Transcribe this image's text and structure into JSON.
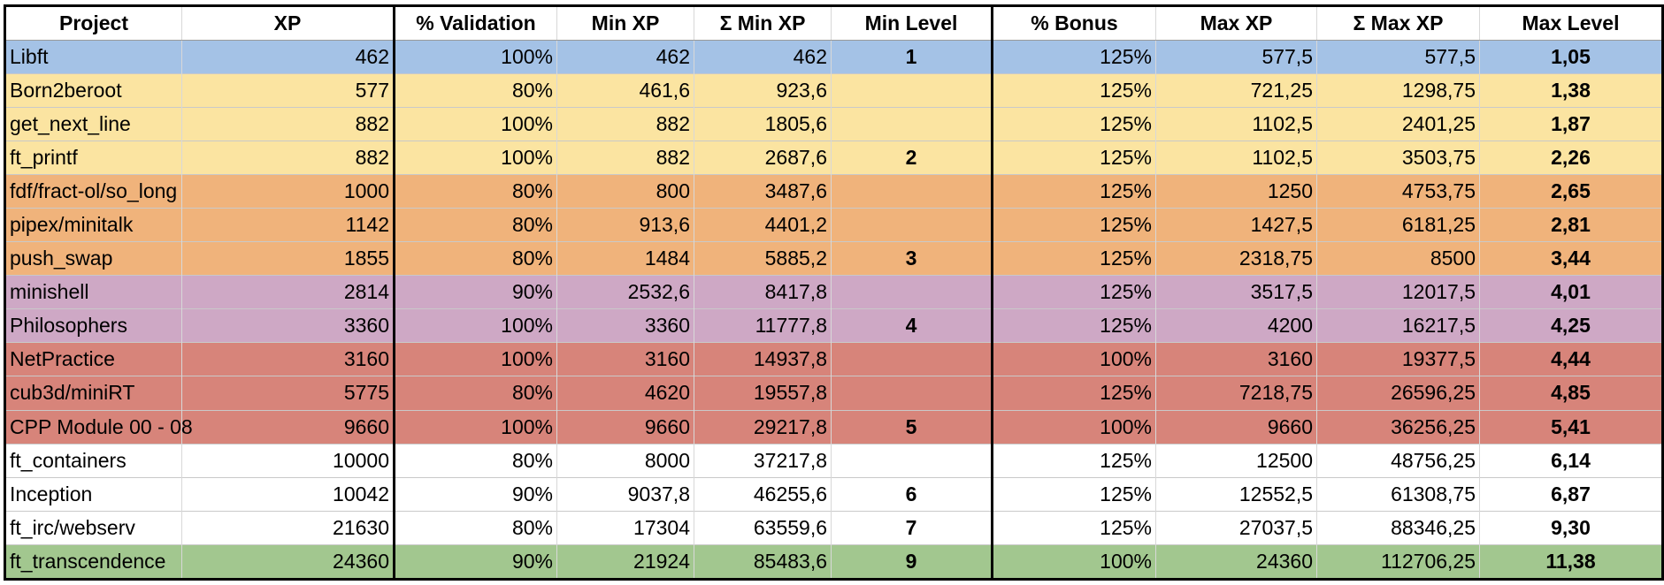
{
  "colors": {
    "blue": "#a4c2e6",
    "yellow": "#fbe4a1",
    "orange": "#f0b37b",
    "purple": "#cea8c5",
    "red": "#d7847a",
    "white": "#ffffff",
    "green": "#a2c78f"
  },
  "headers": [
    "Project",
    "XP",
    "% Validation",
    "Min XP",
    "Σ Min XP",
    "Min Level",
    "% Bonus",
    "Max XP",
    "Σ Max XP",
    "Max Level"
  ],
  "rows": [
    {
      "color": "blue",
      "cells": [
        "Libft",
        "462",
        "100%",
        "462",
        "462",
        "1",
        "125%",
        "577,5",
        "577,5",
        "1,05"
      ]
    },
    {
      "color": "yellow",
      "cells": [
        "Born2beroot",
        "577",
        "80%",
        "461,6",
        "923,6",
        "",
        "125%",
        "721,25",
        "1298,75",
        "1,38"
      ]
    },
    {
      "color": "yellow",
      "cells": [
        "get_next_line",
        "882",
        "100%",
        "882",
        "1805,6",
        "",
        "125%",
        "1102,5",
        "2401,25",
        "1,87"
      ]
    },
    {
      "color": "yellow",
      "cells": [
        "ft_printf",
        "882",
        "100%",
        "882",
        "2687,6",
        "2",
        "125%",
        "1102,5",
        "3503,75",
        "2,26"
      ]
    },
    {
      "color": "orange",
      "cells": [
        "fdf/fract-ol/so_long",
        "1000",
        "80%",
        "800",
        "3487,6",
        "",
        "125%",
        "1250",
        "4753,75",
        "2,65"
      ]
    },
    {
      "color": "orange",
      "cells": [
        "pipex/minitalk",
        "1142",
        "80%",
        "913,6",
        "4401,2",
        "",
        "125%",
        "1427,5",
        "6181,25",
        "2,81"
      ]
    },
    {
      "color": "orange",
      "cells": [
        "push_swap",
        "1855",
        "80%",
        "1484",
        "5885,2",
        "3",
        "125%",
        "2318,75",
        "8500",
        "3,44"
      ]
    },
    {
      "color": "purple",
      "cells": [
        "minishell",
        "2814",
        "90%",
        "2532,6",
        "8417,8",
        "",
        "125%",
        "3517,5",
        "12017,5",
        "4,01"
      ]
    },
    {
      "color": "purple",
      "cells": [
        "Philosophers",
        "3360",
        "100%",
        "3360",
        "11777,8",
        "4",
        "125%",
        "4200",
        "16217,5",
        "4,25"
      ]
    },
    {
      "color": "red",
      "cells": [
        "NetPractice",
        "3160",
        "100%",
        "3160",
        "14937,8",
        "",
        "100%",
        "3160",
        "19377,5",
        "4,44"
      ]
    },
    {
      "color": "red",
      "cells": [
        "cub3d/miniRT",
        "5775",
        "80%",
        "4620",
        "19557,8",
        "",
        "125%",
        "7218,75",
        "26596,25",
        "4,85"
      ]
    },
    {
      "color": "red",
      "cells": [
        "CPP Module 00 - 08",
        "9660",
        "100%",
        "9660",
        "29217,8",
        "5",
        "100%",
        "9660",
        "36256,25",
        "5,41"
      ]
    },
    {
      "color": "white",
      "cells": [
        "ft_containers",
        "10000",
        "80%",
        "8000",
        "37217,8",
        "",
        "125%",
        "12500",
        "48756,25",
        "6,14"
      ]
    },
    {
      "color": "white",
      "cells": [
        "Inception",
        "10042",
        "90%",
        "9037,8",
        "46255,6",
        "6",
        "125%",
        "12552,5",
        "61308,75",
        "6,87"
      ]
    },
    {
      "color": "white",
      "cells": [
        "ft_irc/webserv",
        "21630",
        "80%",
        "17304",
        "63559,6",
        "7",
        "125%",
        "27037,5",
        "88346,25",
        "9,30"
      ]
    },
    {
      "color": "green",
      "cells": [
        "ft_transcendence",
        "24360",
        "90%",
        "21924",
        "85483,6",
        "9",
        "100%",
        "24360",
        "112706,25",
        "11,38"
      ]
    }
  ]
}
